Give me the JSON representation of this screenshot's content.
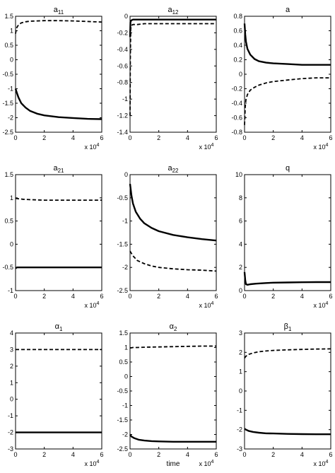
{
  "chart_data": [
    {
      "type": "line",
      "title": "a",
      "title_sub": "11",
      "xlabel": "",
      "x_multiplier_label": "x 10",
      "x_multiplier_exp": "4",
      "xlim": [
        0,
        6
      ],
      "ylim": [
        -2.5,
        1.5
      ],
      "xticks": [
        0,
        2,
        4,
        6
      ],
      "xtick_labels": [
        "0",
        "2",
        "4",
        "6"
      ],
      "yticks": [
        -2.5,
        -2,
        -1.5,
        -1,
        -0.5,
        0,
        0.5,
        1,
        1.5
      ],
      "ytick_labels": [
        "-2.5",
        "-2",
        "-1.5",
        "-1",
        "-0.5",
        "0",
        "0.5",
        "1",
        "1.5"
      ],
      "grid": false,
      "series": [
        {
          "style": "solid",
          "x": [
            0,
            0.1,
            0.2,
            0.4,
            0.7,
            1,
            1.5,
            2,
            3,
            4,
            5,
            6
          ],
          "y": [
            -1.0,
            -1.15,
            -1.3,
            -1.5,
            -1.65,
            -1.76,
            -1.86,
            -1.92,
            -1.98,
            -2.01,
            -2.04,
            -2.05
          ]
        },
        {
          "style": "dashed",
          "x": [
            0,
            0.05,
            0.1,
            0.2,
            0.4,
            0.7,
            1,
            1.5,
            2,
            3,
            4,
            5,
            6
          ],
          "y": [
            0.9,
            1.05,
            1.12,
            1.2,
            1.27,
            1.31,
            1.33,
            1.34,
            1.35,
            1.35,
            1.34,
            1.32,
            1.3
          ]
        }
      ]
    },
    {
      "type": "line",
      "title": "a",
      "title_sub": "12",
      "xlabel": "",
      "x_multiplier_label": "x 10",
      "x_multiplier_exp": "4",
      "xlim": [
        0,
        6
      ],
      "ylim": [
        -1.4,
        0
      ],
      "xticks": [
        0,
        2,
        4,
        6
      ],
      "xtick_labels": [
        "0",
        "2",
        "4",
        "6"
      ],
      "yticks": [
        -1.4,
        -1.2,
        -1,
        -0.8,
        -0.6,
        -0.4,
        -0.2,
        0
      ],
      "ytick_labels": [
        "-1.4",
        "-1.2",
        "-1",
        "-0.8",
        "-0.6",
        "-0.4",
        "-0.2",
        "0"
      ],
      "grid": false,
      "series": [
        {
          "style": "solid",
          "x": [
            0,
            0.03,
            0.08,
            0.2,
            0.5,
            1,
            2,
            3,
            4,
            5,
            6
          ],
          "y": [
            -0.25,
            -0.07,
            -0.05,
            -0.04,
            -0.04,
            -0.04,
            -0.04,
            -0.04,
            -0.04,
            -0.04,
            -0.04
          ]
        },
        {
          "style": "dashed",
          "x": [
            0,
            0.02,
            0.05,
            0.1,
            0.2,
            0.5,
            1,
            2,
            3,
            4,
            5,
            6
          ],
          "y": [
            -1.2,
            -0.5,
            -0.15,
            -0.11,
            -0.1,
            -0.1,
            -0.09,
            -0.09,
            -0.09,
            -0.09,
            -0.09,
            -0.09
          ]
        }
      ]
    },
    {
      "type": "line",
      "title": "a",
      "title_sub": "",
      "xlabel": "",
      "x_multiplier_label": "x 10",
      "x_multiplier_exp": "4",
      "xlim": [
        0,
        6
      ],
      "ylim": [
        -0.8,
        0.8
      ],
      "xticks": [
        0,
        2,
        4,
        6
      ],
      "xtick_labels": [
        "0",
        "2",
        "4",
        "6"
      ],
      "yticks": [
        -0.8,
        -0.6,
        -0.4,
        -0.2,
        0,
        0.2,
        0.4,
        0.6,
        0.8
      ],
      "ytick_labels": [
        "-0.8",
        "-0.6",
        "-0.4",
        "-0.2",
        "0",
        "0.2",
        "0.4",
        "0.6",
        "0.8"
      ],
      "grid": false,
      "series": [
        {
          "style": "solid",
          "x": [
            0,
            0.05,
            0.1,
            0.2,
            0.4,
            0.7,
            1,
            1.5,
            2,
            3,
            4,
            5,
            6
          ],
          "y": [
            0.7,
            0.55,
            0.45,
            0.35,
            0.27,
            0.21,
            0.18,
            0.16,
            0.15,
            0.14,
            0.13,
            0.13,
            0.13
          ]
        },
        {
          "style": "dashed",
          "x": [
            0,
            0.05,
            0.1,
            0.2,
            0.4,
            0.7,
            1,
            1.5,
            2,
            3,
            4,
            5,
            6
          ],
          "y": [
            -0.7,
            -0.45,
            -0.35,
            -0.28,
            -0.22,
            -0.18,
            -0.15,
            -0.12,
            -0.1,
            -0.08,
            -0.06,
            -0.05,
            -0.05
          ]
        }
      ]
    },
    {
      "type": "line",
      "title": "a",
      "title_sub": "21",
      "xlabel": "",
      "x_multiplier_label": "x 10",
      "x_multiplier_exp": "4",
      "xlim": [
        0,
        6
      ],
      "ylim": [
        -1,
        1.5
      ],
      "xticks": [
        0,
        2,
        4,
        6
      ],
      "xtick_labels": [
        "0",
        "2",
        "4",
        "6"
      ],
      "yticks": [
        -1,
        -0.5,
        0,
        0.5,
        1,
        1.5
      ],
      "ytick_labels": [
        "-1",
        "-0.5",
        "0",
        "0.5",
        "1",
        "1.5"
      ],
      "grid": false,
      "series": [
        {
          "style": "solid",
          "x": [
            0,
            0.1,
            1,
            2,
            3,
            4,
            5,
            6
          ],
          "y": [
            -0.52,
            -0.5,
            -0.5,
            -0.5,
            -0.5,
            -0.5,
            -0.5,
            -0.5
          ]
        },
        {
          "style": "dashed",
          "x": [
            0,
            0.2,
            0.5,
            1,
            2,
            3,
            4,
            5,
            6
          ],
          "y": [
            0.99,
            0.98,
            0.97,
            0.96,
            0.95,
            0.95,
            0.95,
            0.95,
            0.95
          ]
        }
      ]
    },
    {
      "type": "line",
      "title": "a",
      "title_sub": "22",
      "xlabel": "",
      "x_multiplier_label": "x 10",
      "x_multiplier_exp": "4",
      "xlim": [
        0,
        6
      ],
      "ylim": [
        -2.5,
        0
      ],
      "xticks": [
        0,
        2,
        4,
        6
      ],
      "xtick_labels": [
        "0",
        "2",
        "4",
        "6"
      ],
      "yticks": [
        -2.5,
        -2,
        -1.5,
        -1,
        -0.5,
        0
      ],
      "ytick_labels": [
        "-2.5",
        "-2",
        "-1.5",
        "-1",
        "-0.5",
        "0"
      ],
      "grid": false,
      "series": [
        {
          "style": "solid",
          "x": [
            0,
            0.1,
            0.2,
            0.4,
            0.7,
            1,
            1.5,
            2,
            3,
            4,
            5,
            6
          ],
          "y": [
            -0.2,
            -0.45,
            -0.62,
            -0.8,
            -0.95,
            -1.05,
            -1.15,
            -1.22,
            -1.3,
            -1.35,
            -1.39,
            -1.42
          ]
        },
        {
          "style": "dashed",
          "x": [
            0,
            0.2,
            0.5,
            1,
            1.5,
            2,
            3,
            4,
            5,
            6
          ],
          "y": [
            -1.65,
            -1.75,
            -1.85,
            -1.92,
            -1.97,
            -2.0,
            -2.03,
            -2.05,
            -2.06,
            -2.08
          ]
        }
      ]
    },
    {
      "type": "line",
      "title": "q",
      "title_sub": "",
      "xlabel": "",
      "x_multiplier_label": "x 10",
      "x_multiplier_exp": "4",
      "xlim": [
        0,
        6
      ],
      "ylim": [
        0,
        10
      ],
      "xticks": [
        0,
        2,
        4,
        6
      ],
      "xtick_labels": [
        "0",
        "2",
        "4",
        "6"
      ],
      "yticks": [
        0,
        2,
        4,
        6,
        8,
        10
      ],
      "ytick_labels": [
        "0",
        "2",
        "4",
        "6",
        "8",
        "10"
      ],
      "grid": false,
      "series": [
        {
          "style": "solid",
          "x": [
            0,
            0.05,
            0.1,
            0.2,
            0.4,
            0.8,
            1.5,
            2,
            3,
            4,
            5,
            6
          ],
          "y": [
            1.6,
            0.9,
            0.55,
            0.5,
            0.55,
            0.6,
            0.65,
            0.68,
            0.7,
            0.72,
            0.73,
            0.73
          ]
        }
      ]
    },
    {
      "type": "line",
      "title": "α",
      "title_sub": "1",
      "xlabel": "",
      "x_multiplier_label": "x 10",
      "x_multiplier_exp": "4",
      "xlim": [
        0,
        6
      ],
      "ylim": [
        -3,
        4
      ],
      "xticks": [
        0,
        2,
        4,
        6
      ],
      "xtick_labels": [
        "0",
        "2",
        "4",
        "6"
      ],
      "yticks": [
        -3,
        -2,
        -1,
        0,
        1,
        2,
        3,
        4
      ],
      "ytick_labels": [
        "-3",
        "-2",
        "-1",
        "0",
        "1",
        "2",
        "3",
        "4"
      ],
      "grid": false,
      "series": [
        {
          "style": "solid",
          "x": [
            0,
            1,
            2,
            3,
            4,
            5,
            6
          ],
          "y": [
            -2,
            -2,
            -2,
            -2,
            -2,
            -2,
            -2
          ]
        },
        {
          "style": "dashed",
          "x": [
            0,
            1,
            2,
            3,
            4,
            5,
            6
          ],
          "y": [
            3,
            3,
            3,
            3,
            3,
            3,
            3
          ]
        }
      ]
    },
    {
      "type": "line",
      "title": "α",
      "title_sub": "2",
      "xlabel": "time",
      "x_multiplier_label": "x 10",
      "x_multiplier_exp": "4",
      "xlim": [
        0,
        6
      ],
      "ylim": [
        -2.5,
        1.5
      ],
      "xticks": [
        0,
        2,
        4,
        6
      ],
      "xtick_labels": [
        "0",
        "2",
        "4",
        "6"
      ],
      "yticks": [
        -2.5,
        -2,
        -1.5,
        -1,
        -0.5,
        0,
        0.5,
        1,
        1.5
      ],
      "ytick_labels": [
        "-2.5",
        "-2",
        "-1.5",
        "-1",
        "-0.5",
        "0",
        "0.5",
        "1",
        "1.5"
      ],
      "grid": false,
      "series": [
        {
          "style": "solid",
          "x": [
            0,
            0.1,
            0.3,
            0.6,
            1,
            1.5,
            2,
            3,
            4,
            5,
            6
          ],
          "y": [
            -2.0,
            -2.07,
            -2.13,
            -2.18,
            -2.21,
            -2.23,
            -2.24,
            -2.25,
            -2.25,
            -2.25,
            -2.25
          ]
        },
        {
          "style": "dashed",
          "x": [
            0,
            0.2,
            0.5,
            1,
            2,
            3,
            4,
            5,
            6
          ],
          "y": [
            0.98,
            1.0,
            1.0,
            1.01,
            1.02,
            1.03,
            1.04,
            1.05,
            1.05
          ]
        }
      ]
    },
    {
      "type": "line",
      "title": "β",
      "title_sub": "1",
      "xlabel": "",
      "x_multiplier_label": "x 10",
      "x_multiplier_exp": "4",
      "xlim": [
        0,
        6
      ],
      "ylim": [
        -3,
        3
      ],
      "xticks": [
        0,
        2,
        4,
        6
      ],
      "xtick_labels": [
        "0",
        "2",
        "4",
        "6"
      ],
      "yticks": [
        -3,
        -2,
        -1,
        0,
        1,
        2,
        3
      ],
      "ytick_labels": [
        "-3",
        "-2",
        "-1",
        "0",
        "1",
        "2",
        "3"
      ],
      "grid": false,
      "series": [
        {
          "style": "solid",
          "x": [
            0,
            0.1,
            0.3,
            0.6,
            1,
            1.5,
            2,
            3,
            4,
            5,
            6
          ],
          "y": [
            -1.95,
            -2.0,
            -2.07,
            -2.12,
            -2.16,
            -2.19,
            -2.2,
            -2.22,
            -2.23,
            -2.24,
            -2.24
          ]
        },
        {
          "style": "dashed",
          "x": [
            0,
            0.1,
            0.3,
            0.6,
            1,
            1.5,
            2,
            3,
            4,
            5,
            6
          ],
          "y": [
            1.7,
            1.8,
            1.9,
            1.97,
            2.03,
            2.07,
            2.1,
            2.13,
            2.15,
            2.17,
            2.18
          ]
        }
      ]
    }
  ]
}
